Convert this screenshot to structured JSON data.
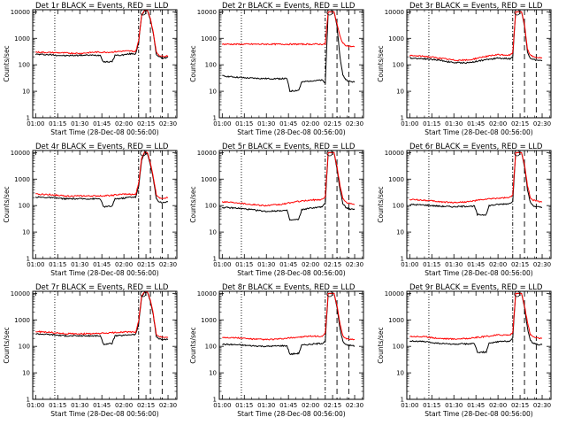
{
  "figure": {
    "title_suffix": " BLACK = Events, RED = LLD",
    "xlabel": "Start Time (28-Dec-08 00:56:00)",
    "ylabel": "Counts/sec",
    "xticks": [
      "01:00",
      "01:15",
      "01:30",
      "01:45",
      "02:00",
      "02:15",
      "02:30"
    ],
    "yticks": [
      "1",
      "10",
      "100",
      "1000",
      "10000"
    ],
    "colors": {
      "events": "#000000",
      "lld": "#ff0000"
    }
  },
  "chart_data": [
    {
      "type": "line",
      "title": "Det 1r",
      "ylim": [
        1,
        12000
      ],
      "xlim": [
        "00:58",
        "02:36"
      ],
      "log_y": true,
      "series": [
        {
          "name": "Events",
          "x": [
            "01:00",
            "01:10",
            "01:20",
            "01:30",
            "01:40",
            "01:44",
            "01:46",
            "01:52",
            "01:54",
            "01:58",
            "02:04",
            "02:08",
            "02:10",
            "02:12",
            "02:14",
            "02:16",
            "02:18",
            "02:20",
            "02:22",
            "02:24",
            "02:26",
            "02:30"
          ],
          "values": [
            250,
            240,
            220,
            230,
            230,
            230,
            130,
            130,
            230,
            230,
            260,
            260,
            700,
            7000,
            11000,
            11000,
            5000,
            1500,
            250,
            200,
            180,
            190
          ]
        },
        {
          "name": "LLD",
          "x": [
            "01:00",
            "01:10",
            "01:20",
            "01:30",
            "01:40",
            "01:50",
            "02:00",
            "02:04",
            "02:08",
            "02:10",
            "02:12",
            "02:14",
            "02:16",
            "02:18",
            "02:20",
            "02:22",
            "02:24",
            "02:26",
            "02:30"
          ],
          "values": [
            300,
            290,
            280,
            270,
            300,
            300,
            330,
            330,
            320,
            800,
            7500,
            11500,
            11500,
            5500,
            1700,
            300,
            230,
            210,
            220
          ]
        }
      ],
      "annotations": [
        "dotted vertical line at 01:13",
        "dash-dot vertical line at 02:10",
        "dashed vertical lines at 02:18 and 02:26"
      ]
    },
    {
      "type": "line",
      "title": "Det 2r",
      "ylim": [
        1,
        12000
      ],
      "xlim": [
        "00:58",
        "02:36"
      ],
      "log_y": true,
      "series": [
        {
          "name": "Events",
          "x": [
            "01:00",
            "01:15",
            "01:30",
            "01:44",
            "01:46",
            "01:52",
            "01:54",
            "02:00",
            "02:08",
            "02:10",
            "02:12",
            "02:14",
            "02:16",
            "02:18",
            "02:20",
            "02:22",
            "02:24",
            "02:26",
            "02:30"
          ],
          "values": [
            38,
            32,
            30,
            30,
            10,
            11,
            22,
            25,
            26,
            20,
            10000,
            10000,
            10000,
            3000,
            200,
            40,
            28,
            24,
            22
          ]
        },
        {
          "name": "LLD",
          "x": [
            "01:00",
            "01:15",
            "01:30",
            "01:45",
            "02:00",
            "02:08",
            "02:10",
            "02:12",
            "02:14",
            "02:16",
            "02:18",
            "02:20",
            "02:22",
            "02:24",
            "02:26",
            "02:30"
          ],
          "values": [
            600,
            600,
            600,
            600,
            600,
            600,
            600,
            10000,
            10000,
            10000,
            3500,
            1200,
            650,
            550,
            500,
            480
          ]
        }
      ],
      "annotations": [
        "dotted vertical line at 01:13",
        "dash-dot vertical line at 02:10",
        "dashed vertical lines at 02:18 and 02:26"
      ]
    },
    {
      "type": "line",
      "title": "Det 3r",
      "ylim": [
        1,
        12000
      ],
      "xlim": [
        "00:58",
        "02:36"
      ],
      "log_y": true,
      "series": [
        {
          "name": "Events",
          "x": [
            "01:00",
            "01:10",
            "01:20",
            "01:30",
            "01:40",
            "01:50",
            "02:00",
            "02:08",
            "02:10",
            "02:12",
            "02:14",
            "02:16",
            "02:18",
            "02:20",
            "02:22",
            "02:24",
            "02:26",
            "02:30"
          ],
          "values": [
            180,
            170,
            150,
            120,
            120,
            150,
            180,
            170,
            200,
            10000,
            10000,
            10000,
            3000,
            300,
            180,
            160,
            150,
            140
          ]
        },
        {
          "name": "LLD",
          "x": [
            "01:00",
            "01:10",
            "01:20",
            "01:30",
            "01:40",
            "01:50",
            "02:00",
            "02:08",
            "02:10",
            "02:12",
            "02:14",
            "02:16",
            "02:18",
            "02:20",
            "02:22",
            "02:24",
            "02:26",
            "02:30"
          ],
          "values": [
            220,
            210,
            180,
            150,
            150,
            200,
            240,
            230,
            280,
            10000,
            10000,
            10000,
            3500,
            400,
            230,
            200,
            190,
            180
          ]
        }
      ],
      "annotations": [
        "dotted vertical line at 01:13",
        "dash-dot vertical line at 02:10",
        "dashed vertical lines at 02:18 and 02:26"
      ]
    },
    {
      "type": "line",
      "title": "Det 4r",
      "ylim": [
        1,
        12000
      ],
      "xlim": [
        "00:58",
        "02:36"
      ],
      "log_y": true,
      "series": [
        {
          "name": "Events",
          "x": [
            "01:00",
            "01:10",
            "01:20",
            "01:30",
            "01:40",
            "01:44",
            "01:46",
            "01:52",
            "01:54",
            "02:00",
            "02:04",
            "02:08",
            "02:10",
            "02:12",
            "02:14",
            "02:16",
            "02:18",
            "02:20",
            "02:22",
            "02:24",
            "02:26",
            "02:30"
          ],
          "values": [
            210,
            200,
            180,
            180,
            180,
            180,
            90,
            95,
            180,
            190,
            210,
            210,
            500,
            5000,
            10000,
            9000,
            3500,
            1000,
            180,
            140,
            130,
            140
          ]
        },
        {
          "name": "LLD",
          "x": [
            "01:00",
            "01:10",
            "01:20",
            "01:30",
            "01:40",
            "01:50",
            "02:00",
            "02:08",
            "02:10",
            "02:12",
            "02:14",
            "02:16",
            "02:18",
            "02:20",
            "02:22",
            "02:24",
            "02:26",
            "02:30"
          ],
          "values": [
            270,
            260,
            230,
            230,
            230,
            240,
            270,
            260,
            700,
            6000,
            10500,
            10000,
            4000,
            1200,
            260,
            200,
            190,
            200
          ]
        }
      ],
      "annotations": [
        "dotted vertical line at 01:13",
        "dash-dot vertical line at 02:10",
        "dashed vertical lines at 02:18 and 02:26"
      ]
    },
    {
      "type": "line",
      "title": "Det 5r",
      "ylim": [
        1,
        12000
      ],
      "xlim": [
        "00:58",
        "02:36"
      ],
      "log_y": true,
      "series": [
        {
          "name": "Events",
          "x": [
            "01:00",
            "01:10",
            "01:20",
            "01:30",
            "01:40",
            "01:44",
            "01:46",
            "01:52",
            "01:54",
            "02:00",
            "02:08",
            "02:10",
            "02:12",
            "02:14",
            "02:16",
            "02:18",
            "02:20",
            "02:22",
            "02:24",
            "02:26",
            "02:30"
          ],
          "values": [
            85,
            80,
            70,
            60,
            65,
            65,
            28,
            30,
            70,
            80,
            90,
            120,
            10000,
            10000,
            10000,
            2500,
            400,
            120,
            85,
            75,
            70
          ]
        },
        {
          "name": "LLD",
          "x": [
            "01:00",
            "01:10",
            "01:20",
            "01:30",
            "01:40",
            "01:50",
            "02:00",
            "02:08",
            "02:10",
            "02:12",
            "02:14",
            "02:16",
            "02:18",
            "02:20",
            "02:22",
            "02:24",
            "02:26",
            "02:30"
          ],
          "values": [
            140,
            130,
            110,
            100,
            110,
            140,
            160,
            170,
            220,
            10000,
            10000,
            10000,
            3000,
            600,
            180,
            140,
            120,
            110
          ]
        }
      ],
      "annotations": [
        "dotted vertical line at 01:13",
        "dash-dot vertical line at 02:10",
        "dashed vertical lines at 02:18 and 02:26"
      ]
    },
    {
      "type": "line",
      "title": "Det 6r",
      "ylim": [
        1,
        12000
      ],
      "xlim": [
        "00:58",
        "02:36"
      ],
      "log_y": true,
      "series": [
        {
          "name": "Events",
          "x": [
            "01:00",
            "01:10",
            "01:20",
            "01:30",
            "01:40",
            "01:44",
            "01:46",
            "01:52",
            "01:54",
            "02:00",
            "02:08",
            "02:10",
            "02:12",
            "02:14",
            "02:16",
            "02:18",
            "02:20",
            "02:22",
            "02:24",
            "02:26",
            "02:30"
          ],
          "values": [
            110,
            105,
            95,
            90,
            95,
            95,
            45,
            45,
            100,
            110,
            120,
            150,
            10000,
            10000,
            10000,
            3000,
            400,
            130,
            100,
            90,
            85
          ]
        },
        {
          "name": "LLD",
          "x": [
            "01:00",
            "01:10",
            "01:20",
            "01:30",
            "01:40",
            "01:50",
            "02:00",
            "02:08",
            "02:10",
            "02:12",
            "02:14",
            "02:16",
            "02:18",
            "02:20",
            "02:22",
            "02:24",
            "02:26",
            "02:30"
          ],
          "values": [
            170,
            160,
            140,
            130,
            140,
            170,
            190,
            200,
            250,
            10000,
            10000,
            10000,
            3500,
            600,
            200,
            160,
            150,
            140
          ]
        }
      ],
      "annotations": [
        "dotted vertical line at 01:13",
        "dash-dot vertical line at 02:10",
        "dashed vertical lines at 02:18 and 02:26"
      ]
    },
    {
      "type": "line",
      "title": "Det 7r",
      "ylim": [
        1,
        12000
      ],
      "xlim": [
        "00:58",
        "02:36"
      ],
      "log_y": true,
      "series": [
        {
          "name": "Events",
          "x": [
            "01:00",
            "01:10",
            "01:20",
            "01:30",
            "01:40",
            "01:44",
            "01:46",
            "01:52",
            "01:54",
            "02:00",
            "02:04",
            "02:08",
            "02:10",
            "02:12",
            "02:14",
            "02:16",
            "02:18",
            "02:20",
            "02:22",
            "02:24",
            "02:26",
            "02:30"
          ],
          "values": [
            300,
            280,
            250,
            250,
            250,
            250,
            120,
            130,
            250,
            260,
            280,
            280,
            700,
            7000,
            11000,
            11000,
            5000,
            1500,
            230,
            190,
            180,
            180
          ]
        },
        {
          "name": "LLD",
          "x": [
            "01:00",
            "01:10",
            "01:20",
            "01:30",
            "01:40",
            "01:50",
            "02:00",
            "02:08",
            "02:10",
            "02:12",
            "02:14",
            "02:16",
            "02:18",
            "02:20",
            "02:22",
            "02:24",
            "02:26",
            "02:30"
          ],
          "values": [
            360,
            340,
            300,
            300,
            300,
            320,
            350,
            340,
            900,
            8000,
            11500,
            11500,
            5500,
            1700,
            280,
            230,
            220,
            220
          ]
        }
      ],
      "annotations": [
        "dotted vertical line at 01:13",
        "dash-dot vertical line at 02:10",
        "dashed vertical lines at 02:18 and 02:26"
      ]
    },
    {
      "type": "line",
      "title": "Det 8r",
      "ylim": [
        1,
        12000
      ],
      "xlim": [
        "00:58",
        "02:36"
      ],
      "log_y": true,
      "series": [
        {
          "name": "Events",
          "x": [
            "01:00",
            "01:10",
            "01:20",
            "01:30",
            "01:40",
            "01:44",
            "01:46",
            "01:52",
            "01:54",
            "02:00",
            "02:08",
            "02:10",
            "02:12",
            "02:14",
            "02:16",
            "02:18",
            "02:20",
            "02:22",
            "02:24",
            "02:26",
            "02:30"
          ],
          "values": [
            120,
            115,
            105,
            100,
            105,
            105,
            50,
            55,
            110,
            120,
            130,
            160,
            10000,
            10000,
            10000,
            3000,
            450,
            150,
            120,
            110,
            105
          ]
        },
        {
          "name": "LLD",
          "x": [
            "01:00",
            "01:10",
            "01:20",
            "01:30",
            "01:40",
            "01:50",
            "02:00",
            "02:08",
            "02:10",
            "02:12",
            "02:14",
            "02:16",
            "02:18",
            "02:20",
            "02:22",
            "02:24",
            "02:26",
            "02:30"
          ],
          "values": [
            220,
            210,
            190,
            180,
            190,
            220,
            240,
            240,
            300,
            10000,
            10000,
            10000,
            3500,
            700,
            250,
            200,
            190,
            180
          ]
        }
      ],
      "annotations": [
        "dotted vertical line at 01:13",
        "dash-dot vertical line at 02:10",
        "dashed vertical lines at 02:18 and 02:26"
      ]
    },
    {
      "type": "line",
      "title": "Det 9r",
      "ylim": [
        1,
        12000
      ],
      "xlim": [
        "00:58",
        "02:36"
      ],
      "log_y": true,
      "series": [
        {
          "name": "Events",
          "x": [
            "01:00",
            "01:10",
            "01:20",
            "01:30",
            "01:40",
            "01:44",
            "01:46",
            "01:52",
            "01:54",
            "02:00",
            "02:08",
            "02:10",
            "02:12",
            "02:14",
            "02:16",
            "02:18",
            "02:20",
            "02:22",
            "02:24",
            "02:26",
            "02:30"
          ],
          "values": [
            160,
            150,
            130,
            120,
            125,
            125,
            60,
            60,
            130,
            150,
            160,
            200,
            10000,
            10000,
            10000,
            3000,
            500,
            170,
            130,
            120,
            115
          ]
        },
        {
          "name": "LLD",
          "x": [
            "01:00",
            "01:10",
            "01:20",
            "01:30",
            "01:40",
            "01:50",
            "02:00",
            "02:08",
            "02:10",
            "02:12",
            "02:14",
            "02:16",
            "02:18",
            "02:20",
            "02:22",
            "02:24",
            "02:26",
            "02:30"
          ],
          "values": [
            240,
            230,
            200,
            190,
            200,
            230,
            270,
            270,
            330,
            10000,
            10000,
            10000,
            3500,
            800,
            280,
            230,
            210,
            200
          ]
        }
      ],
      "annotations": [
        "dotted vertical line at 01:13",
        "dash-dot vertical line at 02:10",
        "dashed vertical lines at 02:18 and 02:26"
      ]
    }
  ]
}
